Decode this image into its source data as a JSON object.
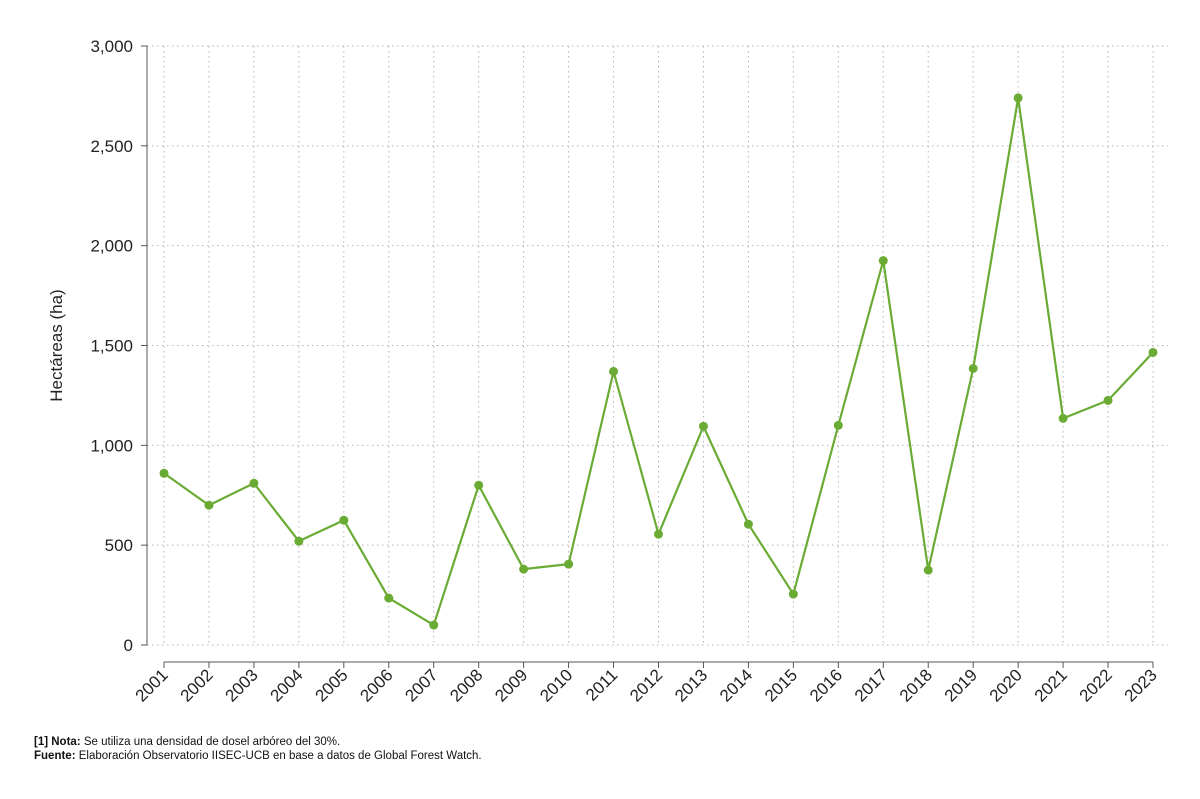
{
  "chart_data": {
    "type": "line",
    "title": "",
    "xlabel": "",
    "ylabel": "Hectáreas (ha)",
    "categories": [
      "2001",
      "2002",
      "2003",
      "2004",
      "2005",
      "2006",
      "2007",
      "2008",
      "2009",
      "2010",
      "2011",
      "2012",
      "2013",
      "2014",
      "2015",
      "2016",
      "2017",
      "2018",
      "2019",
      "2020",
      "2021",
      "2022",
      "2023"
    ],
    "series": [
      {
        "name": "Hectáreas",
        "values": [
          860,
          700,
          810,
          520,
          625,
          235,
          100,
          800,
          380,
          405,
          1370,
          555,
          1095,
          605,
          255,
          1100,
          1925,
          375,
          1385,
          2740,
          1135,
          1225,
          1465
        ],
        "color": "#6aab34"
      }
    ],
    "ylim": [
      0,
      3000
    ],
    "yticks": [
      0,
      500,
      1000,
      1500,
      2000,
      2500,
      3000
    ],
    "ytick_labels": [
      "0",
      "500",
      "1,000",
      "1,500",
      "2,000",
      "2,500",
      "3,000"
    ],
    "grid": true,
    "legend": "none"
  },
  "notes": {
    "nota_label": "[1] Nota:",
    "nota_text": " Se utiliza una densidad de dosel arbóreo del 30%.",
    "fuente_label": "Fuente:",
    "fuente_text": " Elaboración Observatorio IISEC-UCB en base a datos de Global Forest Watch."
  }
}
